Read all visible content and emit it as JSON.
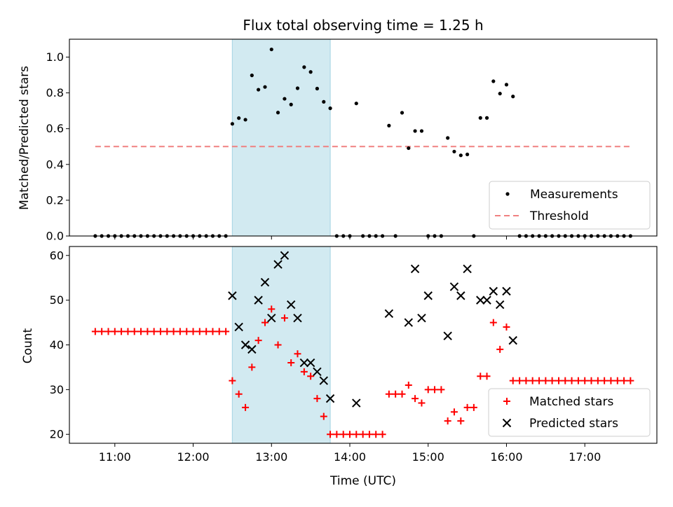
{
  "chart_data": [
    {
      "type": "scatter",
      "title": "Flux total observing time = 1.25 h",
      "ylabel": "Matched/Predicted stars",
      "xlabel": "",
      "ylim": [
        0,
        1.1
      ],
      "yticks": [
        0.0,
        0.2,
        0.4,
        0.6,
        0.8,
        1.0
      ],
      "ytick_labels": [
        "0.0",
        "0.2",
        "0.4",
        "0.6",
        "0.8",
        "1.0"
      ],
      "xlim_hours": [
        10.42,
        17.92
      ],
      "shaded_interval_hours": [
        12.5,
        13.75
      ],
      "shaded_color": "#add8e6",
      "legend_position": "lower-right",
      "threshold": {
        "name": "Threshold",
        "value": 0.5,
        "x_range_hours": [
          10.75,
          17.6
        ],
        "color": "#f08080"
      },
      "series": [
        {
          "name": "Measurements",
          "color": "#000000",
          "x": [
            10.75,
            10.833,
            10.917,
            11.0,
            11.083,
            11.167,
            11.25,
            11.333,
            11.417,
            11.5,
            11.583,
            11.667,
            11.75,
            11.833,
            11.917,
            12.0,
            12.083,
            12.167,
            12.25,
            12.333,
            12.417,
            12.5,
            12.583,
            12.667,
            12.75,
            12.833,
            12.917,
            13.0,
            13.083,
            13.167,
            13.25,
            13.333,
            13.417,
            13.5,
            13.583,
            13.667,
            13.75,
            13.833,
            13.917,
            14.0,
            14.083,
            14.167,
            14.25,
            14.333,
            14.417,
            14.5,
            14.583,
            14.667,
            14.75,
            14.833,
            14.917,
            15.0,
            15.083,
            15.167,
            15.25,
            15.333,
            15.417,
            15.5,
            15.583,
            15.667,
            15.75,
            15.833,
            15.917,
            16.0,
            16.083,
            16.167,
            16.25,
            16.333,
            16.417,
            16.5,
            16.583,
            16.667,
            16.75,
            16.833,
            16.917,
            17.0,
            17.083,
            17.167,
            17.25,
            17.333,
            17.417,
            17.5,
            17.583
          ],
          "y": [
            0,
            0,
            0,
            0,
            0,
            0,
            0,
            0,
            0,
            0,
            0,
            0,
            0,
            0,
            0,
            0,
            0,
            0,
            0,
            0,
            0,
            0.627,
            0.659,
            0.65,
            0.898,
            0.818,
            0.833,
            1.043,
            0.69,
            0.767,
            0.735,
            0.826,
            0.944,
            0.917,
            0.824,
            0.75,
            0.714,
            0,
            0,
            0,
            0.741,
            0,
            0,
            0,
            0,
            0.617,
            0,
            0.689,
            0.491,
            0.587,
            0.587,
            0,
            0,
            0,
            0.548,
            0.472,
            0.451,
            0.456,
            0,
            0.66,
            0.66,
            0.865,
            0.796,
            0.846,
            0.78,
            0,
            0,
            0,
            0,
            0,
            0,
            0,
            0,
            0,
            0,
            0,
            0,
            0,
            0,
            0,
            0,
            0,
            0
          ]
        }
      ]
    },
    {
      "type": "scatter",
      "title": "",
      "ylabel": "Count",
      "xlabel": "Time (UTC)",
      "ylim": [
        18,
        62
      ],
      "yticks": [
        20,
        30,
        40,
        50,
        60
      ],
      "ytick_labels": [
        "20",
        "30",
        "40",
        "50",
        "60"
      ],
      "xlim_hours": [
        10.42,
        17.92
      ],
      "xticks_hours": [
        11,
        12,
        13,
        14,
        15,
        16,
        17
      ],
      "xtick_labels": [
        "11:00",
        "12:00",
        "13:00",
        "14:00",
        "15:00",
        "16:00",
        "17:00"
      ],
      "shaded_interval_hours": [
        12.5,
        13.75
      ],
      "shaded_color": "#add8e6",
      "legend_position": "lower-right",
      "series": [
        {
          "name": "Matched stars",
          "marker": "plus",
          "color": "#ff0000",
          "x": [
            10.75,
            10.833,
            10.917,
            11.0,
            11.083,
            11.167,
            11.25,
            11.333,
            11.417,
            11.5,
            11.583,
            11.667,
            11.75,
            11.833,
            11.917,
            12.0,
            12.083,
            12.167,
            12.25,
            12.333,
            12.417,
            12.5,
            12.583,
            12.667,
            12.75,
            12.833,
            12.917,
            13.0,
            13.083,
            13.167,
            13.25,
            13.333,
            13.417,
            13.5,
            13.583,
            13.667,
            13.75,
            13.833,
            13.917,
            14.0,
            14.083,
            14.167,
            14.25,
            14.333,
            14.417,
            14.5,
            14.583,
            14.667,
            14.75,
            14.833,
            14.917,
            15.0,
            15.083,
            15.167,
            15.25,
            15.333,
            15.417,
            15.5,
            15.583,
            15.667,
            15.75,
            15.833,
            15.917,
            16.0,
            16.083,
            16.167,
            16.25,
            16.333,
            16.417,
            16.5,
            16.583,
            16.667,
            16.75,
            16.833,
            16.917,
            17.0,
            17.083,
            17.167,
            17.25,
            17.333,
            17.417,
            17.5,
            17.583
          ],
          "y": [
            43,
            43,
            43,
            43,
            43,
            43,
            43,
            43,
            43,
            43,
            43,
            43,
            43,
            43,
            43,
            43,
            43,
            43,
            43,
            43,
            43,
            32,
            29,
            26,
            35,
            41,
            45,
            48,
            40,
            46,
            36,
            38,
            34,
            33,
            28,
            24,
            20,
            20,
            20,
            20,
            20,
            20,
            20,
            20,
            20,
            29,
            29,
            29,
            31,
            28,
            27,
            30,
            30,
            30,
            23,
            25,
            23,
            26,
            26,
            33,
            33,
            45,
            39,
            44,
            32,
            32,
            32,
            32,
            32,
            32,
            32,
            32,
            32,
            32,
            32,
            32,
            32,
            32,
            32,
            32,
            32,
            32,
            32
          ]
        },
        {
          "name": "Predicted stars",
          "marker": "x",
          "color": "#000000",
          "x": [
            12.5,
            12.583,
            12.667,
            12.75,
            12.833,
            12.917,
            13.0,
            13.083,
            13.167,
            13.25,
            13.333,
            13.417,
            13.5,
            13.583,
            13.667,
            13.75,
            14.083,
            14.5,
            14.75,
            14.833,
            14.917,
            15.0,
            15.25,
            15.333,
            15.417,
            15.5,
            15.667,
            15.75,
            15.833,
            15.917,
            16.0,
            16.083
          ],
          "y": [
            51,
            44,
            40,
            39,
            50,
            54,
            46,
            58,
            60,
            49,
            46,
            36,
            36,
            34,
            32,
            28,
            27,
            47,
            45,
            57,
            46,
            51,
            42,
            53,
            51,
            57,
            50,
            50,
            52,
            49,
            52,
            41
          ]
        }
      ]
    }
  ]
}
